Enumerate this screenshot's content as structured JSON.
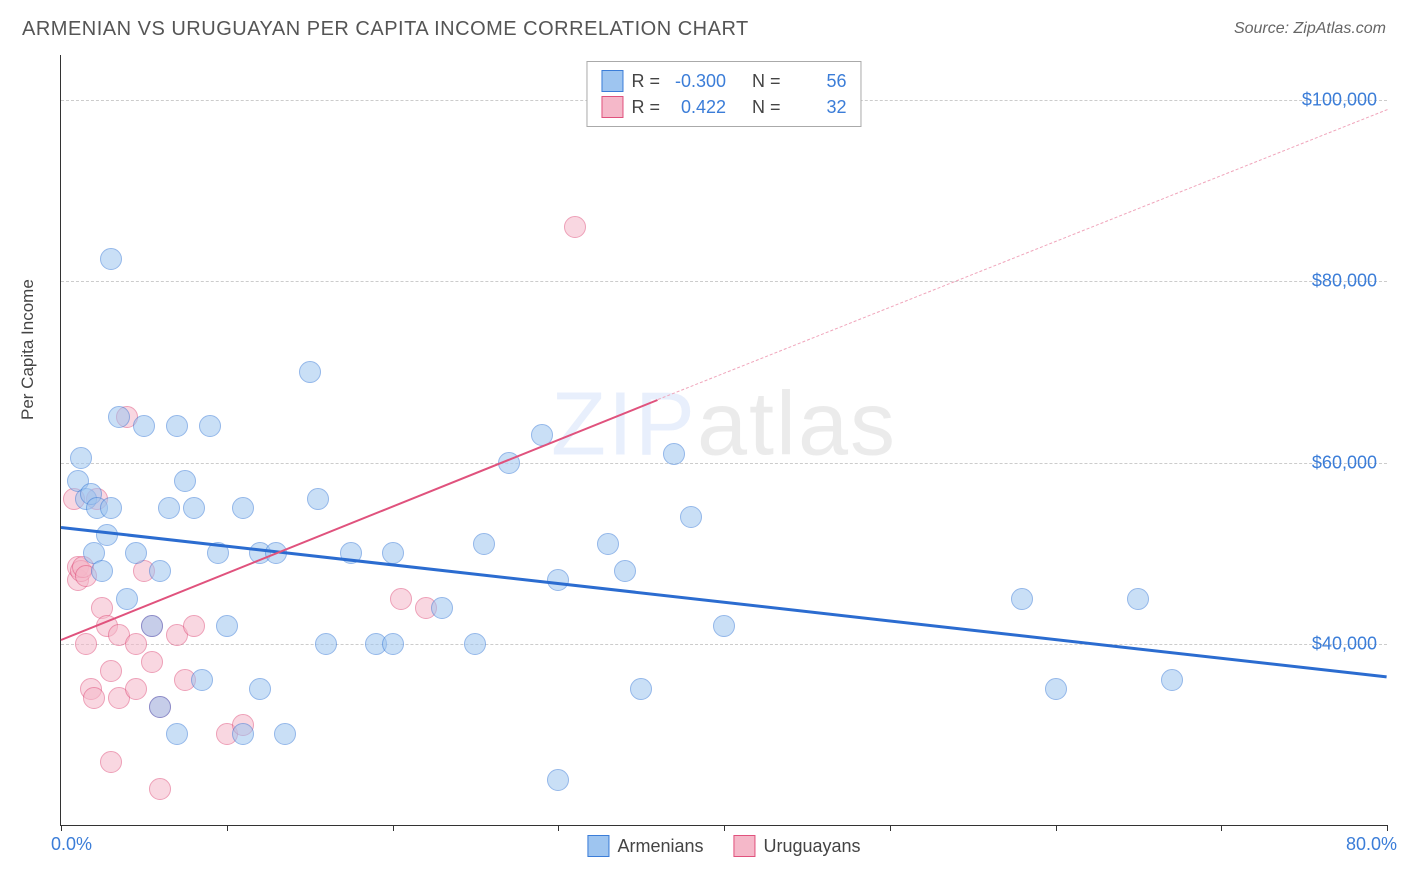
{
  "title": "ARMENIAN VS URUGUAYAN PER CAPITA INCOME CORRELATION CHART",
  "source_prefix": "Source: ",
  "source": "ZipAtlas.com",
  "ylabel": "Per Capita Income",
  "watermark_a": "ZIP",
  "watermark_b": "atlas",
  "chart": {
    "type": "scatter-correlation",
    "xlim": [
      0,
      80
    ],
    "ylim": [
      20000,
      105000
    ],
    "xlim_labels": [
      "0.0%",
      "80.0%"
    ],
    "xtick_positions": [
      0,
      10,
      20,
      30,
      40,
      50,
      60,
      70,
      80
    ],
    "yticks": [
      40000,
      60000,
      80000,
      100000
    ],
    "ytick_labels": [
      "$40,000",
      "$60,000",
      "$80,000",
      "$100,000"
    ],
    "y_grid_dashed": true,
    "background_color": "#ffffff",
    "grid_color": "#cccccc",
    "axis_color": "#333333",
    "tick_label_color": "#3b7dd8",
    "point_radius": 11,
    "point_opacity": 0.55,
    "series": [
      {
        "name": "Armenians",
        "color_fill": "#9ec5f0",
        "color_stroke": "#3b7dd8",
        "R": "-0.300",
        "N": "56",
        "trend": {
          "x1": 0,
          "y1": 53000,
          "x2": 80,
          "y2": 36500,
          "width": 3,
          "dash": false,
          "color": "#2b6cd0"
        },
        "points": [
          [
            1.0,
            58000
          ],
          [
            1.2,
            60500
          ],
          [
            1.5,
            56000
          ],
          [
            1.8,
            56500
          ],
          [
            2.0,
            50000
          ],
          [
            2.2,
            55000
          ],
          [
            2.5,
            48000
          ],
          [
            2.8,
            52000
          ],
          [
            3.0,
            82500
          ],
          [
            3.0,
            55000
          ],
          [
            3.5,
            65000
          ],
          [
            4.0,
            45000
          ],
          [
            4.5,
            50000
          ],
          [
            5.0,
            64000
          ],
          [
            5.5,
            42000
          ],
          [
            6.0,
            48000
          ],
          [
            6.0,
            33000
          ],
          [
            6.5,
            55000
          ],
          [
            7.0,
            64000
          ],
          [
            7.5,
            58000
          ],
          [
            7.0,
            30000
          ],
          [
            8.0,
            55000
          ],
          [
            8.5,
            36000
          ],
          [
            9.0,
            64000
          ],
          [
            9.5,
            50000
          ],
          [
            10.0,
            42000
          ],
          [
            11.0,
            55000
          ],
          [
            11.0,
            30000
          ],
          [
            12.0,
            50000
          ],
          [
            12.0,
            35000
          ],
          [
            13.0,
            50000
          ],
          [
            13.5,
            30000
          ],
          [
            15.0,
            70000
          ],
          [
            15.5,
            56000
          ],
          [
            16.0,
            40000
          ],
          [
            17.5,
            50000
          ],
          [
            19.0,
            40000
          ],
          [
            20.0,
            50000
          ],
          [
            20.0,
            40000
          ],
          [
            23.0,
            44000
          ],
          [
            25.0,
            40000
          ],
          [
            25.5,
            51000
          ],
          [
            27.0,
            60000
          ],
          [
            29.0,
            63000
          ],
          [
            30.0,
            47000
          ],
          [
            30.0,
            25000
          ],
          [
            33.0,
            51000
          ],
          [
            34.0,
            48000
          ],
          [
            35.0,
            35000
          ],
          [
            37.0,
            61000
          ],
          [
            38.0,
            54000
          ],
          [
            40.0,
            42000
          ],
          [
            58.0,
            45000
          ],
          [
            60.0,
            35000
          ],
          [
            65.0,
            45000
          ],
          [
            67.0,
            36000
          ]
        ]
      },
      {
        "name": "Uruguayans",
        "color_fill": "#f5b8c9",
        "color_stroke": "#e0527d",
        "R": "0.422",
        "N": "32",
        "trend_solid": {
          "x1": 0,
          "y1": 40500,
          "x2": 36,
          "y2": 67000,
          "width": 2.5,
          "color": "#e0527d"
        },
        "trend_dashed": {
          "x1": 36,
          "y1": 67000,
          "x2": 80,
          "y2": 99000,
          "width": 1.5,
          "color": "#f0a5bb"
        },
        "points": [
          [
            0.8,
            56000
          ],
          [
            1.0,
            47000
          ],
          [
            1.0,
            48500
          ],
          [
            1.2,
            48000
          ],
          [
            1.3,
            48500
          ],
          [
            1.5,
            47500
          ],
          [
            1.5,
            40000
          ],
          [
            1.8,
            35000
          ],
          [
            2.0,
            34000
          ],
          [
            2.2,
            56000
          ],
          [
            2.5,
            44000
          ],
          [
            2.8,
            42000
          ],
          [
            3.0,
            37000
          ],
          [
            3.0,
            27000
          ],
          [
            3.5,
            41000
          ],
          [
            3.5,
            34000
          ],
          [
            4.0,
            65000
          ],
          [
            4.5,
            40000
          ],
          [
            4.5,
            35000
          ],
          [
            5.0,
            48000
          ],
          [
            5.5,
            38000
          ],
          [
            5.5,
            42000
          ],
          [
            6.0,
            33000
          ],
          [
            6.0,
            24000
          ],
          [
            7.0,
            41000
          ],
          [
            7.5,
            36000
          ],
          [
            8.0,
            42000
          ],
          [
            10.0,
            30000
          ],
          [
            11.0,
            31000
          ],
          [
            20.5,
            45000
          ],
          [
            22.0,
            44000
          ],
          [
            31.0,
            86000
          ]
        ]
      }
    ],
    "legend_top": {
      "R_label": "R =",
      "N_label": "N ="
    },
    "legend_bottom": [
      "Armenians",
      "Uruguayans"
    ]
  }
}
